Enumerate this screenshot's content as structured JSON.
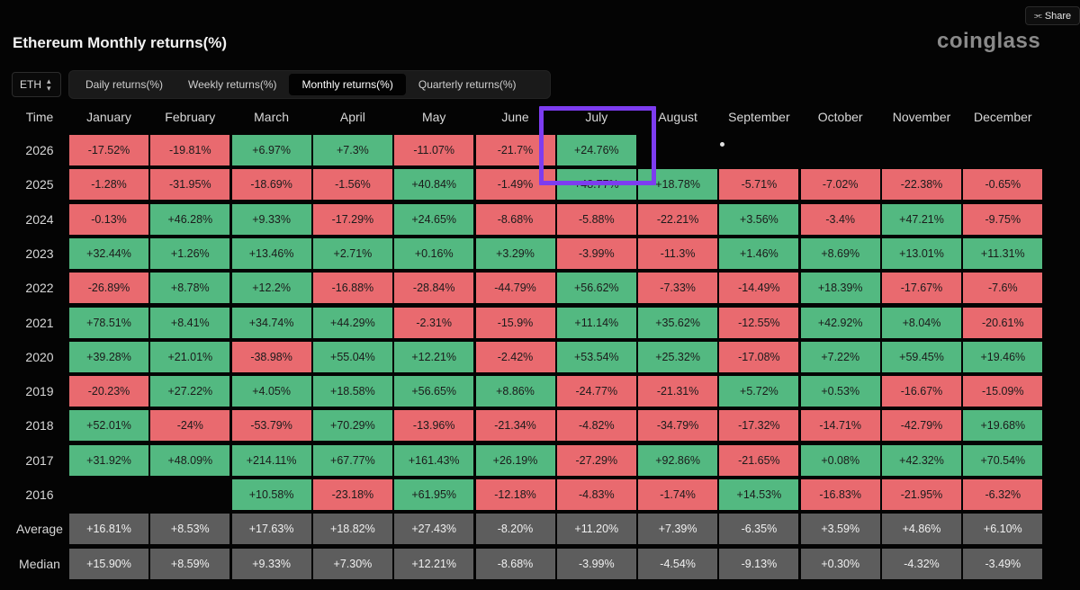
{
  "toolbar": {
    "share_label": "Share"
  },
  "header": {
    "title": "Ethereum Monthly returns(%)",
    "brand": "coinglass"
  },
  "asset_select": {
    "value": "ETH"
  },
  "tabs": [
    {
      "label": "Daily returns(%)",
      "active": false
    },
    {
      "label": "Weekly returns(%)",
      "active": false
    },
    {
      "label": "Monthly returns(%)",
      "active": true
    },
    {
      "label": "Quarterly returns(%)",
      "active": false
    }
  ],
  "table": {
    "corner_label": "Time",
    "columns": [
      "January",
      "February",
      "March",
      "April",
      "May",
      "June",
      "July",
      "August",
      "September",
      "October",
      "November",
      "December"
    ],
    "rows": [
      {
        "label": "2026",
        "values": [
          "-17.52%",
          "-19.81%",
          "+6.97%",
          "+7.3%",
          "-11.07%",
          "-21.7%",
          "+24.76%",
          "",
          "",
          "",
          "",
          ""
        ]
      },
      {
        "label": "2025",
        "values": [
          "-1.28%",
          "-31.95%",
          "-18.69%",
          "-1.56%",
          "+40.84%",
          "-1.49%",
          "+48.77%",
          "+18.78%",
          "-5.71%",
          "-7.02%",
          "-22.38%",
          "-0.65%"
        ]
      },
      {
        "label": "2024",
        "values": [
          "-0.13%",
          "+46.28%",
          "+9.33%",
          "-17.29%",
          "+24.65%",
          "-8.68%",
          "-5.88%",
          "-22.21%",
          "+3.56%",
          "-3.4%",
          "+47.21%",
          "-9.75%"
        ]
      },
      {
        "label": "2023",
        "values": [
          "+32.44%",
          "+1.26%",
          "+13.46%",
          "+2.71%",
          "+0.16%",
          "+3.29%",
          "-3.99%",
          "-11.3%",
          "+1.46%",
          "+8.69%",
          "+13.01%",
          "+11.31%"
        ]
      },
      {
        "label": "2022",
        "values": [
          "-26.89%",
          "+8.78%",
          "+12.2%",
          "-16.88%",
          "-28.84%",
          "-44.79%",
          "+56.62%",
          "-7.33%",
          "-14.49%",
          "+18.39%",
          "-17.67%",
          "-7.6%"
        ]
      },
      {
        "label": "2021",
        "values": [
          "+78.51%",
          "+8.41%",
          "+34.74%",
          "+44.29%",
          "-2.31%",
          "-15.9%",
          "+11.14%",
          "+35.62%",
          "-12.55%",
          "+42.92%",
          "+8.04%",
          "-20.61%"
        ]
      },
      {
        "label": "2020",
        "values": [
          "+39.28%",
          "+21.01%",
          "-38.98%",
          "+55.04%",
          "+12.21%",
          "-2.42%",
          "+53.54%",
          "+25.32%",
          "-17.08%",
          "+7.22%",
          "+59.45%",
          "+19.46%"
        ]
      },
      {
        "label": "2019",
        "values": [
          "-20.23%",
          "+27.22%",
          "+4.05%",
          "+18.58%",
          "+56.65%",
          "+8.86%",
          "-24.77%",
          "-21.31%",
          "+5.72%",
          "+0.53%",
          "-16.67%",
          "-15.09%"
        ]
      },
      {
        "label": "2018",
        "values": [
          "+52.01%",
          "-24%",
          "-53.79%",
          "+70.29%",
          "-13.96%",
          "-21.34%",
          "-4.82%",
          "-34.79%",
          "-17.32%",
          "-14.71%",
          "-42.79%",
          "+19.68%"
        ]
      },
      {
        "label": "2017",
        "values": [
          "+31.92%",
          "+48.09%",
          "+214.11%",
          "+67.77%",
          "+161.43%",
          "+26.19%",
          "-27.29%",
          "+92.86%",
          "-21.65%",
          "+0.08%",
          "+42.32%",
          "+70.54%"
        ]
      },
      {
        "label": "2016",
        "values": [
          "",
          "",
          "+10.58%",
          "-23.18%",
          "+61.95%",
          "-12.18%",
          "-4.83%",
          "-1.74%",
          "+14.53%",
          "-16.83%",
          "-21.95%",
          "-6.32%"
        ]
      }
    ],
    "summary_rows": [
      {
        "label": "Average",
        "values": [
          "+16.81%",
          "+8.53%",
          "+17.63%",
          "+18.82%",
          "+27.43%",
          "-8.20%",
          "+11.20%",
          "+7.39%",
          "-6.35%",
          "+3.59%",
          "+4.86%",
          "+6.10%"
        ]
      },
      {
        "label": "Median",
        "values": [
          "+15.90%",
          "+8.59%",
          "+9.33%",
          "+7.30%",
          "+12.21%",
          "-8.68%",
          "-3.99%",
          "-4.54%",
          "-9.13%",
          "+0.30%",
          "-4.32%",
          "-3.49%"
        ]
      }
    ]
  },
  "colors": {
    "positive": "#53b981",
    "negative": "#e96a6f",
    "summary": "#5d5d5d",
    "highlight": "#7d3cf0"
  }
}
